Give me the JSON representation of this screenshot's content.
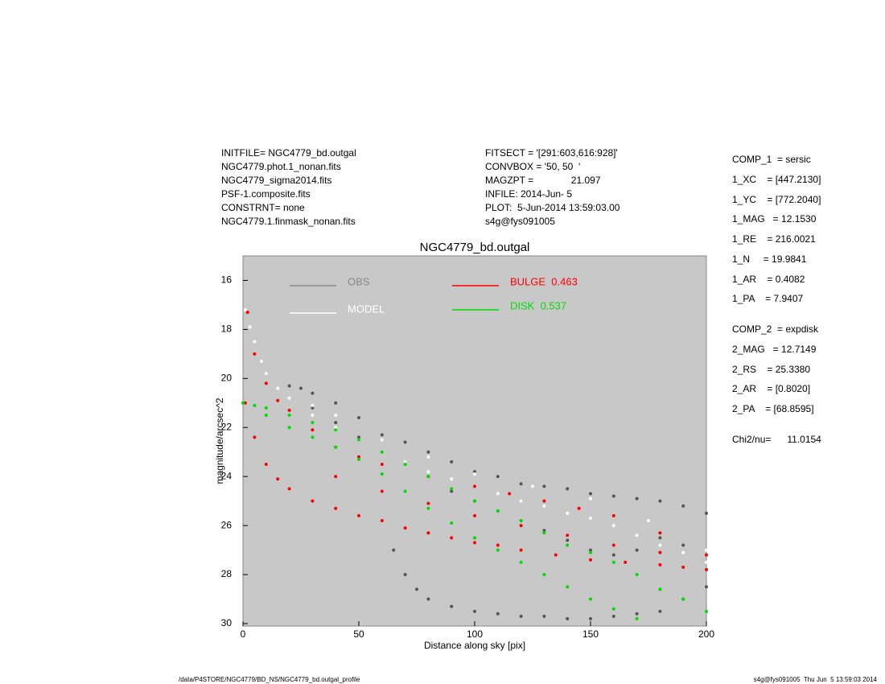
{
  "chart_data": {
    "type": "scatter",
    "title": "NGC4779_bd.outgal",
    "x_label": "Distance along sky [pix]",
    "y_label": "magnitude/arcsec^2",
    "xlim": [
      0,
      200
    ],
    "xticks": [
      0,
      50,
      100,
      150,
      200
    ],
    "ylim": [
      15,
      30.1
    ],
    "yticks": [
      16,
      18,
      20,
      22,
      24,
      26,
      28,
      30
    ],
    "y_inverted": true,
    "background": "#c8c8c8",
    "info_left": [
      "INITFILE= NGC4779_bd.outgal",
      "NGC4779.phot.1_nonan.fits",
      "NGC4779_sigma2014.fits",
      "PSF-1.composite.fits",
      "CONSTRNT= none",
      "NGC4779.1.finmask_nonan.fits"
    ],
    "info_center": [
      "FITSECT = '[291:603,616:928]'",
      "CONVBOX = '50, 50  '",
      "MAGZPT =              21.097",
      "INFILE: 2014-Jun- 5",
      "PLOT:  5-Jun-2014 13:59:03.00",
      "s4g@fys091005"
    ],
    "info_right": [
      "COMP_1  = sersic",
      "1_XC    = [447.2130]",
      "1_YC    = [772.2040]",
      "1_MAG   = 12.1530",
      "1_RE    = 216.0021",
      "1_N     = 19.9841",
      "1_AR    = 0.4082",
      "1_PA    = 7.9407",
      "COMP_2  = expdisk",
      "2_MAG   = 12.7149",
      "2_RS    = 25.3380",
      "2_AR    = [0.8020]",
      "2_PA    = [68.8595]",
      "Chi2/nu=      11.0154"
    ],
    "footer_left": "/data/P4STORE/NGC4779/BD_NS/NGC4779_bd.outgal_profile",
    "footer_right": "s4g@fys091005  Thu Jun  5 13:59:03 2014",
    "series": [
      {
        "name": "OBS",
        "color": "#555555",
        "legend_color": "#8a8a8a",
        "x": [
          20,
          25,
          30,
          40,
          50,
          60,
          70,
          80,
          90,
          100,
          110,
          120,
          130,
          140,
          150,
          160,
          170,
          180,
          190,
          200,
          30,
          40,
          50,
          60,
          70,
          80,
          90,
          100,
          110,
          120,
          130,
          140,
          150,
          160,
          170,
          180,
          190,
          65,
          70,
          75,
          80,
          90,
          100,
          110,
          120,
          130,
          140,
          150,
          160,
          170,
          180,
          190,
          200
        ],
        "y": [
          20.3,
          20.4,
          20.6,
          21.0,
          21.6,
          22.3,
          22.6,
          23.0,
          23.4,
          23.8,
          24.0,
          24.3,
          24.4,
          24.5,
          24.7,
          24.8,
          24.9,
          25.0,
          25.2,
          25.5,
          21.2,
          21.8,
          22.4,
          23.0,
          23.5,
          24.0,
          24.6,
          25.0,
          25.4,
          25.8,
          26.2,
          26.6,
          27.0,
          27.2,
          27.0,
          26.5,
          26.8,
          27.0,
          28.0,
          28.6,
          29.0,
          29.3,
          29.5,
          29.6,
          29.7,
          29.7,
          29.8,
          29.8,
          29.7,
          29.6,
          29.5,
          29.0,
          28.5
        ]
      },
      {
        "name": "MODEL",
        "color": "#ffffff",
        "legend_color": "#ffffff",
        "x": [
          1,
          3,
          5,
          8,
          10,
          15,
          20,
          30,
          40,
          50,
          60,
          70,
          80,
          90,
          100,
          110,
          120,
          130,
          140,
          150,
          160,
          170,
          180,
          190,
          200,
          30,
          40,
          60,
          80,
          100,
          125,
          150,
          175,
          200
        ],
        "y": [
          17.2,
          17.9,
          18.5,
          19.3,
          19.8,
          20.4,
          20.8,
          21.5,
          22.0,
          22.5,
          23.0,
          23.4,
          23.8,
          24.1,
          24.4,
          24.7,
          25.0,
          25.2,
          25.5,
          25.7,
          26.0,
          26.4,
          26.8,
          27.1,
          27.5,
          21.1,
          21.5,
          22.5,
          23.2,
          23.9,
          24.4,
          24.9,
          25.8,
          27.0
        ]
      },
      {
        "name": "BULGE  0.463",
        "color": "#ff0000",
        "legend_color": "#ff0000",
        "x": [
          2,
          5,
          10,
          15,
          20,
          30,
          40,
          50,
          60,
          80,
          100,
          115,
          130,
          145,
          160,
          180,
          200,
          1,
          5,
          10,
          15,
          20,
          30,
          40,
          50,
          60,
          70,
          80,
          90,
          100,
          110,
          120,
          135,
          150,
          165,
          180,
          190,
          200,
          40,
          60,
          80,
          100,
          120,
          140,
          160,
          180
        ],
        "y": [
          17.3,
          19.0,
          20.2,
          20.9,
          21.3,
          22.1,
          22.8,
          23.2,
          23.5,
          24.0,
          24.4,
          24.7,
          25.0,
          25.3,
          25.6,
          26.3,
          27.2,
          21.0,
          22.4,
          23.5,
          24.1,
          24.5,
          25.0,
          25.3,
          25.6,
          25.8,
          26.1,
          26.3,
          26.5,
          26.7,
          26.8,
          27.0,
          27.2,
          27.4,
          27.5,
          27.6,
          27.7,
          27.8,
          24.0,
          24.6,
          25.1,
          25.6,
          26.0,
          26.4,
          26.8,
          27.1
        ]
      },
      {
        "name": "DISK  0.537",
        "color": "#00dd00",
        "legend_color": "#00dd00",
        "x": [
          0,
          5,
          10,
          20,
          30,
          40,
          50,
          60,
          70,
          80,
          90,
          100,
          110,
          120,
          130,
          140,
          150,
          160,
          170,
          180,
          190,
          200,
          10,
          20,
          30,
          40,
          50,
          60,
          70,
          80,
          90,
          100,
          110,
          120,
          130,
          140,
          150,
          160,
          170
        ],
        "y": [
          21.0,
          21.1,
          21.2,
          21.5,
          21.8,
          22.1,
          22.5,
          23.0,
          23.5,
          24.0,
          24.5,
          25.0,
          25.4,
          25.8,
          26.3,
          26.8,
          27.1,
          27.5,
          28.0,
          28.6,
          29.0,
          29.5,
          21.5,
          22.0,
          22.4,
          22.8,
          23.3,
          23.9,
          24.6,
          25.3,
          25.9,
          26.5,
          27.0,
          27.5,
          28.0,
          28.5,
          29.0,
          29.4,
          29.8
        ]
      }
    ]
  }
}
